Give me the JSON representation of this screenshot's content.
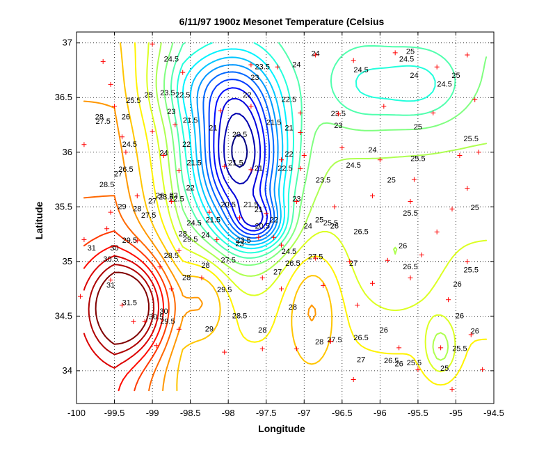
{
  "chart_data": {
    "type": "contour",
    "title": "6/11/97 1900z Mesonet Temperature (Celsius",
    "xlabel": "Longitude",
    "ylabel": "Latitude",
    "xlim": [
      -100,
      -94.5
    ],
    "ylim": [
      33.7,
      37.1
    ],
    "x_ticks": [
      -100,
      -99.5,
      -99,
      -98.5,
      -98,
      -97.5,
      -97,
      -96.5,
      -96,
      -95.5,
      -95,
      -94.5
    ],
    "x_tick_labels": [
      "-100",
      "-99.5",
      "-99",
      "-98.5",
      "-98",
      "-97.5",
      "-97",
      "-96.5",
      "-96",
      "-95.5",
      "-95",
      "-94.5"
    ],
    "y_ticks": [
      34,
      34.5,
      35,
      35.5,
      36,
      36.5,
      37
    ],
    "y_tick_labels": [
      "34",
      "34.5",
      "35",
      "35.5",
      "36",
      "36.5",
      "37"
    ],
    "grid": true,
    "grid_style": "dotted",
    "colormap": "jet",
    "contour_levels": [
      20.5,
      21,
      21.5,
      22,
      22.5,
      23,
      23.5,
      24,
      24.5,
      25,
      25.5,
      26,
      26.5,
      27,
      27.5,
      28,
      28.5,
      29,
      29.5,
      30,
      30.5,
      31,
      31.5
    ],
    "contour_labels": [
      {
        "text": "20.5",
        "x": -97.85,
        "y": 36.14
      },
      {
        "text": "21",
        "x": -98.2,
        "y": 36.2
      },
      {
        "text": "21.5",
        "x": -98.5,
        "y": 36.27
      },
      {
        "text": "22",
        "x": -97.75,
        "y": 36.5
      },
      {
        "text": "22.5",
        "x": -97.2,
        "y": 36.46
      },
      {
        "text": "23",
        "x": -97.65,
        "y": 36.66
      },
      {
        "text": "23.5",
        "x": -97.55,
        "y": 36.76
      },
      {
        "text": "24",
        "x": -97.1,
        "y": 36.78
      },
      {
        "text": "24.5",
        "x": -98.75,
        "y": 36.83
      },
      {
        "text": "21",
        "x": -97.2,
        "y": 36.2
      },
      {
        "text": "21.5",
        "x": -97.4,
        "y": 36.25
      },
      {
        "text": "22",
        "x": -98.55,
        "y": 36.05
      },
      {
        "text": "22.5",
        "x": -98.6,
        "y": 36.5
      },
      {
        "text": "23",
        "x": -98.75,
        "y": 36.35
      },
      {
        "text": "23.5",
        "x": -98.8,
        "y": 36.52
      },
      {
        "text": "24",
        "x": -98.85,
        "y": 35.97
      },
      {
        "text": "24.5",
        "x": -99.3,
        "y": 36.05
      },
      {
        "text": "25",
        "x": -99.05,
        "y": 36.5
      },
      {
        "text": "25.5",
        "x": -99.25,
        "y": 36.45
      },
      {
        "text": "26",
        "x": -99.35,
        "y": 36.3
      },
      {
        "text": "26.5",
        "x": -99.35,
        "y": 35.82
      },
      {
        "text": "27",
        "x": -99.45,
        "y": 35.78
      },
      {
        "text": "27.5",
        "x": -99.65,
        "y": 36.26
      },
      {
        "text": "28",
        "x": -99.7,
        "y": 36.3
      },
      {
        "text": "28.5",
        "x": -99.6,
        "y": 35.68
      },
      {
        "text": "29",
        "x": -99.4,
        "y": 35.48
      },
      {
        "text": "29.5",
        "x": -99.3,
        "y": 35.17
      },
      {
        "text": "30",
        "x": -99.5,
        "y": 35.1
      },
      {
        "text": "30.5",
        "x": -99.55,
        "y": 35.0
      },
      {
        "text": "31",
        "x": -99.8,
        "y": 35.1
      },
      {
        "text": "31",
        "x": -99.55,
        "y": 34.76
      },
      {
        "text": "31.5",
        "x": -99.3,
        "y": 34.6
      },
      {
        "text": "29.5",
        "x": -98.8,
        "y": 34.43
      },
      {
        "text": "30",
        "x": -98.85,
        "y": 34.52
      },
      {
        "text": "30.5",
        "x": -98.95,
        "y": 34.47
      },
      {
        "text": "29",
        "x": -98.25,
        "y": 34.36
      },
      {
        "text": "29.5",
        "x": -98.05,
        "y": 34.72
      },
      {
        "text": "28.5",
        "x": -97.85,
        "y": 34.48
      },
      {
        "text": "28",
        "x": -97.55,
        "y": 34.35
      },
      {
        "text": "28",
        "x": -97.15,
        "y": 34.56
      },
      {
        "text": "28",
        "x": -96.8,
        "y": 34.24
      },
      {
        "text": "27.5",
        "x": -96.6,
        "y": 34.26
      },
      {
        "text": "27",
        "x": -96.25,
        "y": 34.08
      },
      {
        "text": "26.5",
        "x": -96.25,
        "y": 34.28
      },
      {
        "text": "26",
        "x": -95.95,
        "y": 34.35
      },
      {
        "text": "26",
        "x": -95.75,
        "y": 34.04
      },
      {
        "text": "26.5",
        "x": -95.85,
        "y": 34.07
      },
      {
        "text": "25.5",
        "x": -95.55,
        "y": 34.05
      },
      {
        "text": "25",
        "x": -95.15,
        "y": 34.0
      },
      {
        "text": "25.5",
        "x": -94.95,
        "y": 34.18
      },
      {
        "text": "26",
        "x": -94.95,
        "y": 34.48
      },
      {
        "text": "26",
        "x": -94.75,
        "y": 34.34
      },
      {
        "text": "26",
        "x": -94.98,
        "y": 34.77
      },
      {
        "text": "25.5",
        "x": -94.8,
        "y": 34.9
      },
      {
        "text": "25",
        "x": -94.75,
        "y": 35.47
      },
      {
        "text": "26.5",
        "x": -95.6,
        "y": 34.93
      },
      {
        "text": "26",
        "x": -95.7,
        "y": 35.12
      },
      {
        "text": "25.5",
        "x": -95.6,
        "y": 35.42
      },
      {
        "text": "25",
        "x": -95.85,
        "y": 35.72
      },
      {
        "text": "25.5",
        "x": -95.5,
        "y": 35.92
      },
      {
        "text": "25",
        "x": -95.5,
        "y": 36.21
      },
      {
        "text": "25.5",
        "x": -94.8,
        "y": 36.1
      },
      {
        "text": "24.5",
        "x": -95.15,
        "y": 36.6
      },
      {
        "text": "25",
        "x": -95.0,
        "y": 36.68
      },
      {
        "text": "24",
        "x": -95.55,
        "y": 36.68
      },
      {
        "text": "25",
        "x": -95.6,
        "y": 36.9
      },
      {
        "text": "24.5",
        "x": -95.65,
        "y": 36.83
      },
      {
        "text": "24.5",
        "x": -96.25,
        "y": 36.73
      },
      {
        "text": "24",
        "x": -96.85,
        "y": 36.88
      },
      {
        "text": "23.5",
        "x": -96.55,
        "y": 36.33
      },
      {
        "text": "23",
        "x": -96.55,
        "y": 36.22
      },
      {
        "text": "24",
        "x": -96.1,
        "y": 36.0
      },
      {
        "text": "24.5",
        "x": -96.35,
        "y": 35.86
      },
      {
        "text": "23.5",
        "x": -96.75,
        "y": 35.72
      },
      {
        "text": "23",
        "x": -97.1,
        "y": 35.55
      },
      {
        "text": "22.5",
        "x": -97.25,
        "y": 35.83
      },
      {
        "text": "22",
        "x": -97.2,
        "y": 35.96
      },
      {
        "text": "21.5",
        "x": -97.7,
        "y": 35.5
      },
      {
        "text": "21",
        "x": -97.6,
        "y": 35.45
      },
      {
        "text": "21",
        "x": -97.6,
        "y": 35.83
      },
      {
        "text": "21.5",
        "x": -97.9,
        "y": 35.88
      },
      {
        "text": "20.5",
        "x": -98.0,
        "y": 35.5
      },
      {
        "text": "21.5",
        "x": -98.45,
        "y": 35.88
      },
      {
        "text": "21.5",
        "x": -98.2,
        "y": 35.36
      },
      {
        "text": "22",
        "x": -98.5,
        "y": 35.65
      },
      {
        "text": "22.5",
        "x": -98.68,
        "y": 35.55
      },
      {
        "text": "23",
        "x": -98.72,
        "y": 35.58
      },
      {
        "text": "23.5",
        "x": -98.82,
        "y": 35.57
      },
      {
        "text": "24.5",
        "x": -98.45,
        "y": 35.33
      },
      {
        "text": "24",
        "x": -98.3,
        "y": 35.22
      },
      {
        "text": "23",
        "x": -97.85,
        "y": 35.14
      },
      {
        "text": "22",
        "x": -97.4,
        "y": 35.36
      },
      {
        "text": "20.5",
        "x": -97.55,
        "y": 35.3
      },
      {
        "text": "24",
        "x": -96.95,
        "y": 35.3
      },
      {
        "text": "24.5",
        "x": -97.2,
        "y": 35.07
      },
      {
        "text": "25",
        "x": -96.8,
        "y": 35.36
      },
      {
        "text": "25.5",
        "x": -96.65,
        "y": 35.33
      },
      {
        "text": "26",
        "x": -96.6,
        "y": 35.3
      },
      {
        "text": "26.5",
        "x": -96.25,
        "y": 35.25
      },
      {
        "text": "27",
        "x": -96.35,
        "y": 34.96
      },
      {
        "text": "27.5",
        "x": -96.85,
        "y": 35.02
      },
      {
        "text": "26.5",
        "x": -97.15,
        "y": 34.96
      },
      {
        "text": "27",
        "x": -97.35,
        "y": 34.88
      },
      {
        "text": "27.5",
        "x": -98.0,
        "y": 34.99
      },
      {
        "text": "28",
        "x": -98.3,
        "y": 34.94
      },
      {
        "text": "28",
        "x": -98.55,
        "y": 34.83
      },
      {
        "text": "28.5",
        "x": -98.75,
        "y": 35.03
      },
      {
        "text": "29.5",
        "x": -98.5,
        "y": 35.18
      },
      {
        "text": "23.5",
        "x": -97.8,
        "y": 35.17
      },
      {
        "text": "28",
        "x": -98.6,
        "y": 35.23
      },
      {
        "text": "27",
        "x": -99.0,
        "y": 35.53
      },
      {
        "text": "27.5",
        "x": -99.05,
        "y": 35.4
      },
      {
        "text": "28",
        "x": -99.2,
        "y": 35.46
      },
      {
        "text": "26",
        "x": -98.9,
        "y": 35.58
      }
    ],
    "station_markers": [
      [
        -99.0,
        36.99
      ],
      [
        -99.65,
        36.83
      ],
      [
        -99.55,
        36.62
      ],
      [
        -99.5,
        36.42
      ],
      [
        -98.6,
        36.73
      ],
      [
        -97.7,
        36.8
      ],
      [
        -97.35,
        36.78
      ],
      [
        -96.85,
        36.89
      ],
      [
        -96.35,
        36.84
      ],
      [
        -95.8,
        36.91
      ],
      [
        -95.25,
        36.78
      ],
      [
        -94.85,
        36.89
      ],
      [
        -94.75,
        36.48
      ],
      [
        -95.3,
        36.36
      ],
      [
        -95.95,
        36.42
      ],
      [
        -96.55,
        36.35
      ],
      [
        -97.05,
        36.36
      ],
      [
        -97.7,
        36.42
      ],
      [
        -98.1,
        36.38
      ],
      [
        -98.7,
        36.25
      ],
      [
        -99.0,
        36.19
      ],
      [
        -99.4,
        36.14
      ],
      [
        -99.9,
        36.07
      ],
      [
        -99.35,
        36.0
      ],
      [
        -98.85,
        35.97
      ],
      [
        -98.65,
        35.83
      ],
      [
        -98.05,
        35.87
      ],
      [
        -97.7,
        35.84
      ],
      [
        -97.3,
        35.93
      ],
      [
        -97.0,
        35.97
      ],
      [
        -96.5,
        36.04
      ],
      [
        -96.0,
        35.93
      ],
      [
        -95.55,
        35.75
      ],
      [
        -94.95,
        35.97
      ],
      [
        -94.7,
        36.0
      ],
      [
        -94.85,
        35.67
      ],
      [
        -95.6,
        35.55
      ],
      [
        -96.1,
        35.6
      ],
      [
        -96.6,
        35.5
      ],
      [
        -97.1,
        35.55
      ],
      [
        -97.5,
        35.44
      ],
      [
        -97.85,
        35.4
      ],
      [
        -98.25,
        35.45
      ],
      [
        -98.75,
        35.55
      ],
      [
        -99.2,
        35.6
      ],
      [
        -99.55,
        35.45
      ],
      [
        -99.9,
        35.2
      ],
      [
        -99.2,
        35.19
      ],
      [
        -98.65,
        35.1
      ],
      [
        -98.15,
        35.2
      ],
      [
        -97.6,
        35.22
      ],
      [
        -97.3,
        35.15
      ],
      [
        -96.85,
        35.03
      ],
      [
        -96.4,
        35.0
      ],
      [
        -95.9,
        35.01
      ],
      [
        -95.45,
        35.06
      ],
      [
        -94.85,
        35.0
      ],
      [
        -95.1,
        34.65
      ],
      [
        -95.6,
        34.85
      ],
      [
        -96.1,
        34.8
      ],
      [
        -96.75,
        34.78
      ],
      [
        -97.3,
        34.75
      ],
      [
        -97.55,
        34.85
      ],
      [
        -98.35,
        34.85
      ],
      [
        -98.75,
        34.75
      ],
      [
        -99.4,
        34.6
      ],
      [
        -99.55,
        34.83
      ],
      [
        -99.95,
        34.68
      ],
      [
        -99.1,
        34.45
      ],
      [
        -98.65,
        34.38
      ],
      [
        -98.05,
        34.17
      ],
      [
        -97.55,
        34.2
      ],
      [
        -97.1,
        34.2
      ],
      [
        -96.65,
        34.27
      ],
      [
        -96.35,
        33.92
      ],
      [
        -95.75,
        34.21
      ],
      [
        -95.5,
        34.01
      ],
      [
        -95.2,
        34.21
      ],
      [
        -94.8,
        34.33
      ],
      [
        -94.65,
        34.01
      ],
      [
        -95.05,
        33.83
      ],
      [
        -98.95,
        34.23
      ],
      [
        -99.25,
        34.45
      ],
      [
        -99.6,
        35.3
      ],
      [
        -97.05,
        35.85
      ],
      [
        -95.25,
        35.27
      ],
      [
        -95.05,
        35.48
      ],
      [
        -96.3,
        34.6
      ],
      [
        -97.05,
        36.18
      ],
      [
        -97.4,
        35.22
      ],
      [
        -98.9,
        34.95
      ]
    ]
  }
}
